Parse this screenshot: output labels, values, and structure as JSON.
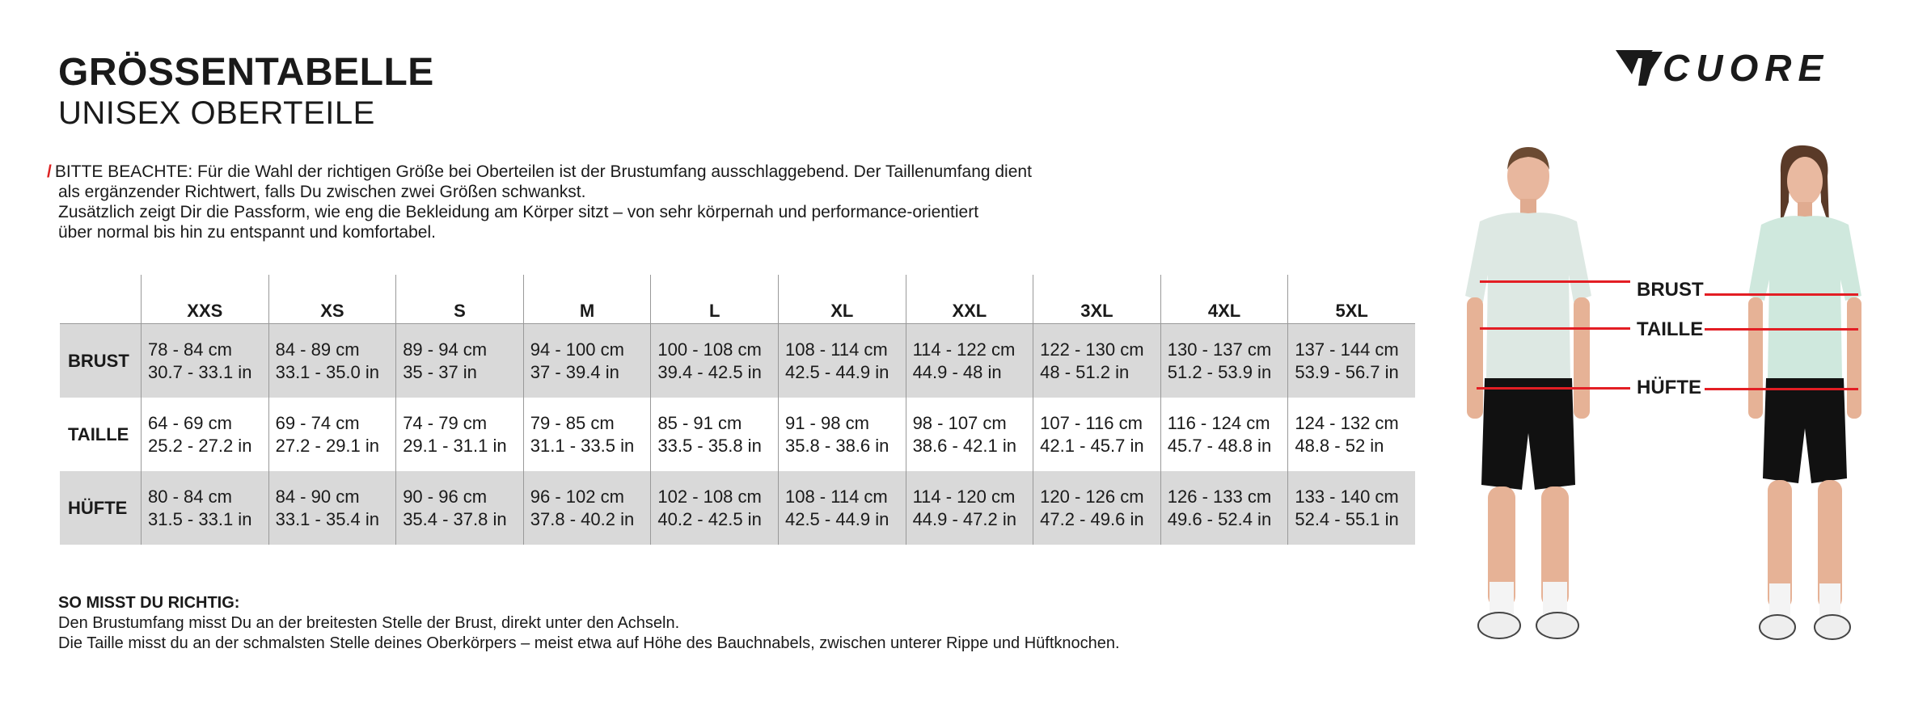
{
  "title": "GRÖSSENTABELLE",
  "subtitle": "UNISEX OBERTEILE",
  "note": {
    "marker": "/",
    "lines": [
      "BITTE BEACHTE: Für die Wahl der richtigen Größe bei Oberteilen ist der Brustumfang ausschlaggebend. Der Taillenumfang dient",
      "als ergänzender Richtwert, falls Du zwischen zwei Größen schwankst.",
      "Zusätzlich zeigt Dir die Passform, wie eng die Bekleidung am Körper sitzt – von sehr körpernah und performance-orientiert",
      "über normal bis hin zu entspannt und komfortabel."
    ]
  },
  "table": {
    "sizes": [
      "XXS",
      "XS",
      "S",
      "M",
      "L",
      "XL",
      "XXL",
      "3XL",
      "4XL",
      "5XL"
    ],
    "rows": [
      {
        "label": "BRUST",
        "cm": [
          "78 - 84 cm",
          "84 - 89 cm",
          "89 - 94 cm",
          "94 - 100 cm",
          "100 - 108 cm",
          "108 - 114 cm",
          "114 - 122 cm",
          "122 - 130 cm",
          "130 - 137 cm",
          "137 - 144 cm"
        ],
        "in": [
          "30.7 - 33.1 in",
          "33.1 - 35.0 in",
          "35 - 37 in",
          "37 - 39.4 in",
          "39.4 - 42.5 in",
          "42.5 - 44.9 in",
          "44.9 - 48 in",
          "48 - 51.2 in",
          "51.2 - 53.9 in",
          "53.9 - 56.7 in"
        ]
      },
      {
        "label": "TAILLE",
        "cm": [
          "64 - 69 cm",
          "69 - 74 cm",
          "74 - 79 cm",
          "79 - 85 cm",
          "85 - 91 cm",
          "91 - 98 cm",
          "98 - 107 cm",
          "107 - 116 cm",
          "116 - 124 cm",
          "124 - 132 cm"
        ],
        "in": [
          "25.2 - 27.2 in",
          "27.2 - 29.1 in",
          "29.1 - 31.1 in",
          "31.1 - 33.5 in",
          "33.5 - 35.8 in",
          "35.8 - 38.6 in",
          "38.6 - 42.1 in",
          "42.1 - 45.7 in",
          "45.7 - 48.8 in",
          "48.8 - 52 in"
        ]
      },
      {
        "label": "HÜFTE",
        "cm": [
          "80 - 84 cm",
          "84 - 90 cm",
          "90 - 96 cm",
          "96 - 102 cm",
          "102 - 108 cm",
          "108 - 114 cm",
          "114 - 120 cm",
          "120 - 126 cm",
          "126 - 133 cm",
          "133 - 140 cm"
        ],
        "in": [
          "31.5 - 33.1 in",
          "33.1 - 35.4 in",
          "35.4 - 37.8 in",
          "37.8 - 40.2 in",
          "40.2 - 42.5 in",
          "42.5 - 44.9 in",
          "44.9 - 47.2 in",
          "47.2 - 49.6 in",
          "49.6 - 52.4 in",
          "52.4 - 55.1 in"
        ]
      }
    ]
  },
  "how_to": {
    "heading": "SO MISST DU RICHTIG:",
    "lines": [
      "Den Brustumfang misst Du an der breitesten Stelle der Brust, direkt unter den Achseln.",
      "Die Taille misst du an der schmalsten Stelle deines Oberkörpers – meist etwa auf Höhe des Bauchnabels, zwischen unterer Rippe und Hüftknochen."
    ]
  },
  "brand": "CUORE",
  "measure_labels": {
    "chest": "BRUST",
    "waist": "TAILLE",
    "hip": "HÜFTE"
  },
  "colors": {
    "accent": "#e31e24",
    "row_shade": "#d9d9d9",
    "jersey_male": "#dde8e3",
    "jersey_female": "#cfe8dd",
    "shorts": "#111111"
  }
}
